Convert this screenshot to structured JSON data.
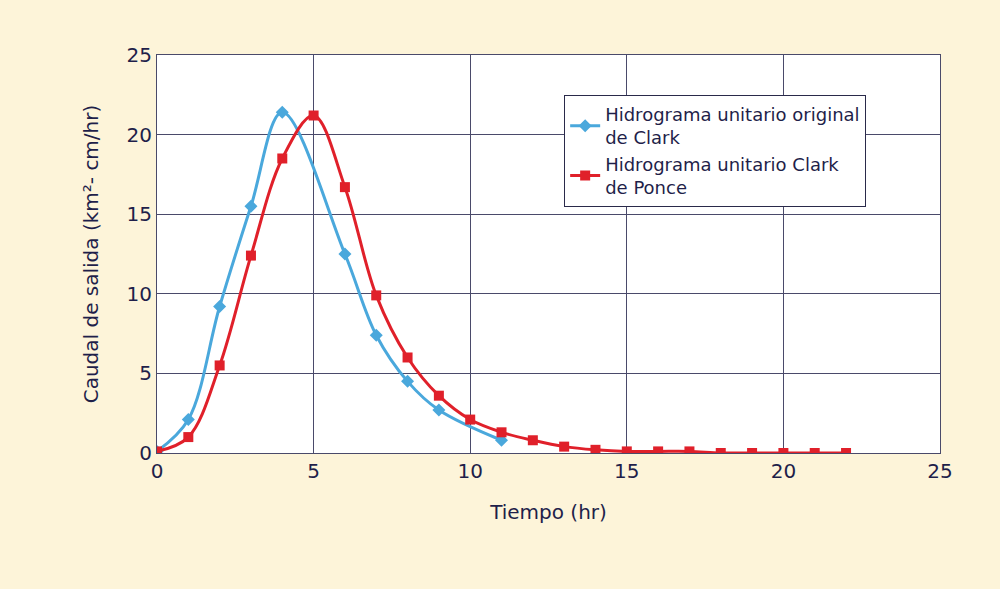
{
  "chart_data": {
    "type": "line",
    "x_label": "Tiempo (hr)",
    "y_label": "Caudal de salida (km²- cm/hr)",
    "xlim": [
      0,
      25
    ],
    "xticks": [
      0,
      5,
      10,
      15,
      20,
      25
    ],
    "ylim": [
      0,
      25
    ],
    "yticks": [
      0,
      5,
      10,
      15,
      20,
      25
    ],
    "grid": true,
    "legend": "upper right",
    "series": [
      {
        "name": "Hidrograma unitario original\nde Clark",
        "color": "#4aa8dc",
        "marker": "diamond",
        "line_style": "solid",
        "x": [
          0,
          1,
          2,
          3,
          4,
          6,
          7,
          8,
          9,
          11
        ],
        "values": [
          0.1,
          2.1,
          9.2,
          15.5,
          21.4,
          12.5,
          7.4,
          4.5,
          2.7,
          0.8
        ]
      },
      {
        "name": "Hidrograma unitario Clark\nde Ponce",
        "color": "#e0202a",
        "marker": "square",
        "line_style": "solid",
        "x": [
          0,
          1,
          2,
          3,
          4,
          5,
          6,
          7,
          8,
          9,
          10,
          11,
          12,
          13,
          14,
          15,
          16,
          17,
          18,
          19,
          20,
          21,
          22
        ],
        "values": [
          0.1,
          1.0,
          5.5,
          12.4,
          18.5,
          21.2,
          16.7,
          9.9,
          6.0,
          3.6,
          2.1,
          1.3,
          0.8,
          0.4,
          0.2,
          0.1,
          0.1,
          0.1,
          0.0,
          0.0,
          0.0,
          0.0,
          0.0
        ]
      }
    ]
  }
}
